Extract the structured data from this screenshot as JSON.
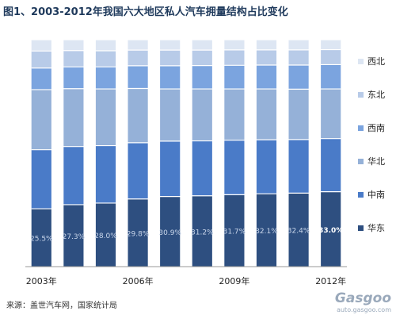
{
  "title": "图1、2003-2012年我国六大地区私人汽车拥量结构占比变化",
  "source": "来源：盖世汽车网，国家统计局",
  "watermark": {
    "logo": "Gasgoo",
    "url": "auto.gasgoo.com"
  },
  "chart_data": {
    "type": "bar",
    "stacked": true,
    "percent_stacked": true,
    "categories": [
      "2003年",
      "2004年",
      "2005年",
      "2006年",
      "2007年",
      "2008年",
      "2009年",
      "2010年",
      "2011年",
      "2012年"
    ],
    "x_tick_labels": [
      "2003年",
      "2006年",
      "2009年",
      "2012年"
    ],
    "ylim": [
      0,
      100
    ],
    "legend_position": "right",
    "series": [
      {
        "name": "华东",
        "color": "#2e4f80",
        "values": [
          25.5,
          27.3,
          28.0,
          29.8,
          30.9,
          31.2,
          31.7,
          32.1,
          32.4,
          33.0
        ],
        "labels": [
          "25.5%",
          "27.3%",
          "28.0%",
          "29.8%",
          "30.9%",
          "31.2%",
          "31.7%",
          "32.1%",
          "32.4%",
          "33.0%"
        ]
      },
      {
        "name": "中南",
        "color": "#4a7bc8",
        "values": [
          26.0,
          25.6,
          25.3,
          24.8,
          24.4,
          24.2,
          24.0,
          23.8,
          23.6,
          23.4
        ]
      },
      {
        "name": "华北",
        "color": "#95b1d8",
        "values": [
          26.5,
          25.5,
          25.0,
          23.9,
          23.0,
          22.9,
          22.6,
          22.4,
          22.2,
          21.9
        ]
      },
      {
        "name": "西南",
        "color": "#7ba4df",
        "values": [
          9.5,
          9.6,
          9.7,
          10.0,
          10.2,
          10.3,
          10.4,
          10.5,
          10.6,
          10.7
        ]
      },
      {
        "name": "东北",
        "color": "#b8cbe8",
        "values": [
          7.5,
          7.2,
          7.1,
          6.9,
          6.9,
          6.8,
          6.8,
          6.7,
          6.7,
          6.6
        ]
      },
      {
        "name": "西北",
        "color": "#dde6f3",
        "values": [
          5.0,
          4.8,
          4.9,
          4.6,
          4.6,
          4.6,
          4.5,
          4.5,
          4.5,
          4.4
        ]
      }
    ]
  }
}
